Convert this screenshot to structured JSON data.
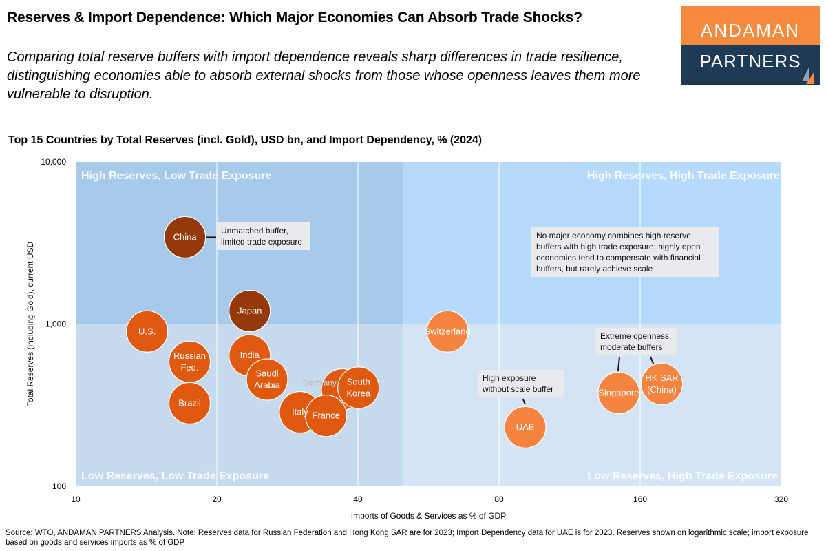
{
  "header": {
    "title": "Reserves & Import Dependence: Which Major Economies Can Absorb Trade Shocks?",
    "subtitle": "Comparing total reserve buffers with import dependence reveals sharp differences in trade resilience, distinguishing economies able to absorb external shocks from those whose openness leaves them more vulnerable to disruption."
  },
  "logo": {
    "line1": "ANDAMAN",
    "line2": "PARTNERS",
    "colors": {
      "top": "#F68A3F",
      "bottom": "#1F3A56"
    }
  },
  "chart_data": {
    "type": "scatter",
    "title": "Top 15 Countries by Total Reserves (incl. Gold), USD bn, and Import Dependency, % (2024)",
    "xlabel": "Imports of Goods & Services as % of GDP",
    "ylabel": "Total Reserves (including Gold), current USD",
    "x_scale": "log",
    "y_scale": "log",
    "xlim": [
      10,
      320
    ],
    "ylim": [
      100,
      10000
    ],
    "x_ticks": [
      "10",
      "20",
      "40",
      "80",
      "160",
      "320"
    ],
    "y_ticks": [
      "100",
      "1,000",
      "10,000"
    ],
    "grid": true,
    "quadrant_split": {
      "x": 50,
      "y": 1000
    },
    "quadrants": {
      "top_left": "High Reserves, Low Trade Exposure",
      "top_right": "High Reserves, High Trade Exposure",
      "bottom_left": "Low Reserves, Low Trade Exposure",
      "bottom_right": "Low Reserves, High Trade Exposure"
    },
    "colors": {
      "dark": "#943A0A",
      "mid": "#DF5A10",
      "light": "#F4843F",
      "q_tl": "#A7C9EA",
      "q_tr": "#B6DAFB",
      "q_bl": "#C5DAED",
      "q_br": "#D4E4F4"
    },
    "points": [
      {
        "label": "China",
        "x": 17.1,
        "y": 3430,
        "group": "dark"
      },
      {
        "label": "Japan",
        "x": 23.5,
        "y": 1205,
        "group": "dark"
      },
      {
        "label": "U.S.",
        "x": 14.2,
        "y": 900,
        "group": "mid"
      },
      {
        "label": "Russian Fed.",
        "x": 17.5,
        "y": 585,
        "group": "mid"
      },
      {
        "label": "Brazil",
        "x": 17.5,
        "y": 325,
        "group": "mid"
      },
      {
        "label": "India",
        "x": 23.5,
        "y": 640,
        "group": "mid"
      },
      {
        "label": "Saudi Arabia",
        "x": 25.6,
        "y": 455,
        "group": "mid"
      },
      {
        "label": "Germany",
        "x": 37.0,
        "y": 395,
        "group": "mid"
      },
      {
        "label": "South Korea",
        "x": 40.1,
        "y": 405,
        "group": "mid"
      },
      {
        "label": "Italy",
        "x": 30.1,
        "y": 286,
        "group": "mid"
      },
      {
        "label": "France",
        "x": 34.2,
        "y": 272,
        "group": "mid"
      },
      {
        "label": "Switzerland",
        "x": 62.1,
        "y": 900,
        "group": "light"
      },
      {
        "label": "UAE",
        "x": 91,
        "y": 231,
        "group": "light"
      },
      {
        "label": "Singapore",
        "x": 144,
        "y": 376,
        "group": "light"
      },
      {
        "label": "HK SAR (China)",
        "x": 178,
        "y": 427,
        "group": "light"
      }
    ],
    "annotations": [
      "Unmatched buffer, limited trade exposure",
      "No major economy combines high reserve buffers with high trade exposure; highly open economies tend to compensate with financial buffers, but rarely achieve scale",
      "High exposure without scale buffer",
      "Extreme openness, moderate buffers"
    ]
  },
  "footer": {
    "source": "Source: WTO, ANDAMAN PARTNERS Analysis. Note: Reserves data for Russian Federation and Hong Kong SAR are for 2023; Import Dependency data for UAE is for 2023. Reserves shown on logarithmic scale; import exposure based on goods and services imports as % of GDP"
  }
}
